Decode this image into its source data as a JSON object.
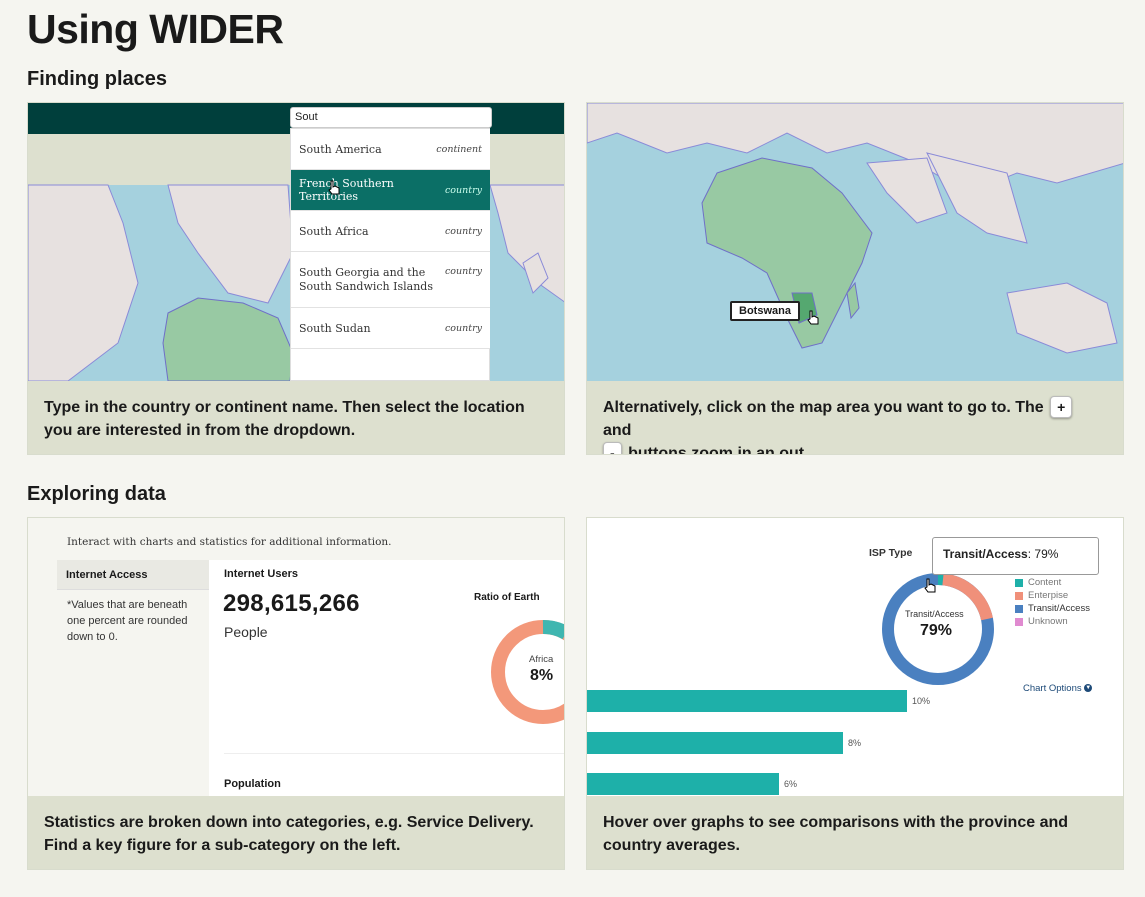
{
  "page": {
    "title": "Using WIDER"
  },
  "sections": {
    "finding": "Finding places",
    "exploring": "Exploring data"
  },
  "cards": {
    "search": {
      "search_value": "Sout",
      "results": [
        {
          "name": "South America",
          "type": "continent"
        },
        {
          "name": "French Southern Territories",
          "type": "country"
        },
        {
          "name": "South Africa",
          "type": "country"
        },
        {
          "name": "South Georgia and the South Sandwich Islands",
          "type": "country"
        },
        {
          "name": "South Sudan",
          "type": "country"
        }
      ],
      "caption": "Type in the country or continent name. Then select the location you are interested in from the dropdown."
    },
    "map": {
      "tooltip": "Botswana",
      "caption_before": "Alternatively, click on the map area you want to go to. The",
      "plus": "+",
      "caption_mid": "and",
      "minus": "-",
      "caption_after": "buttons zoom in an out."
    },
    "stats": {
      "intro": "Interact with charts and statistics for additional information.",
      "sidebar_title": "Internet Access",
      "sidebar_note": "*Values that are beneath one percent are rounded down to 0.",
      "metric_title": "Internet Users",
      "metric_value": "298,615,266",
      "metric_unit": "People",
      "ratio_title": "Ratio of Earth",
      "donut_label": "Africa",
      "donut_value": "8%",
      "section2": "Population",
      "caption": "Statistics are broken down into categories, e.g. Service Delivery. Find a key figure for a sub-category on the left."
    },
    "graphs": {
      "isp_title": "ISP Type",
      "tooltip_label": "Transit/Access",
      "tooltip_value": "79%",
      "donut_label": "Transit/Access",
      "donut_value": "79%",
      "legend": [
        {
          "name": "Content",
          "color": "#1eb0a9"
        },
        {
          "name": "Enterpise",
          "color": "#f0907a"
        },
        {
          "name": "Transit/Access",
          "color": "#4a80c0"
        },
        {
          "name": "Unknown",
          "color": "#e08ad0"
        }
      ],
      "chart_options": "Chart Options",
      "bars": [
        {
          "label": "10%",
          "value": 10
        },
        {
          "label": "8%",
          "value": 8
        },
        {
          "label": "6%",
          "value": 6
        }
      ],
      "caption": "Hover over graphs to see comparisons with the province and country averages."
    }
  }
}
